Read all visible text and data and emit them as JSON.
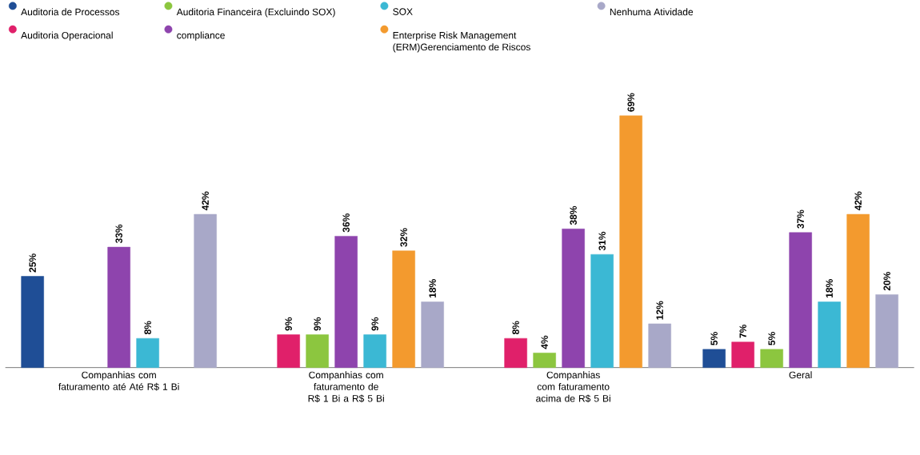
{
  "chart_data": {
    "type": "bar",
    "categories": [
      "Companhias com faturamento até Até R$ 1 Bi",
      "Companhias com faturamento de R$ 1 Bi a R$ 5 Bi",
      "Companhias com faturamento acima de R$ 5 Bi",
      "Geral"
    ],
    "legend": "top left",
    "series": [
      {
        "name": "Auditoria de Processos",
        "color": "#1f4e96",
        "values": [
          25,
          null,
          null,
          5
        ],
        "value_labels": [
          "25%",
          null,
          null,
          "5%"
        ]
      },
      {
        "name": "Auditoria Operacional",
        "color": "#e0206a",
        "values": [
          null,
          9,
          8,
          7
        ],
        "value_labels": [
          null,
          "9%",
          "8%",
          "7%"
        ]
      },
      {
        "name": "Auditoria Financeira (Excluindo SOX)",
        "color": "#8cc63f",
        "values": [
          null,
          9,
          4,
          5
        ],
        "value_labels": [
          null,
          "9%",
          "4%",
          "5%"
        ]
      },
      {
        "name": "compliance",
        "color": "#8e44ad",
        "values": [
          33,
          36,
          38,
          37
        ],
        "value_labels": [
          "33%",
          "36%",
          "38%",
          "37%"
        ]
      },
      {
        "name": "SOX",
        "color": "#3bb8d4",
        "values": [
          8,
          9,
          31,
          18
        ],
        "value_labels": [
          "8%",
          "9%",
          "31%",
          "18%"
        ]
      },
      {
        "name": "Enterprise Risk Management (ERM)Gerenciamento de Riscos",
        "color": "#f39a2e",
        "values": [
          null,
          32,
          69,
          42
        ],
        "value_labels": [
          null,
          "32%",
          "69%",
          "42%"
        ]
      },
      {
        "name": "Nenhuma Atividade",
        "color": "#a8a8c8",
        "values": [
          42,
          18,
          12,
          20
        ],
        "value_labels": [
          "42%",
          "18%",
          "12%",
          "20%"
        ]
      }
    ]
  }
}
